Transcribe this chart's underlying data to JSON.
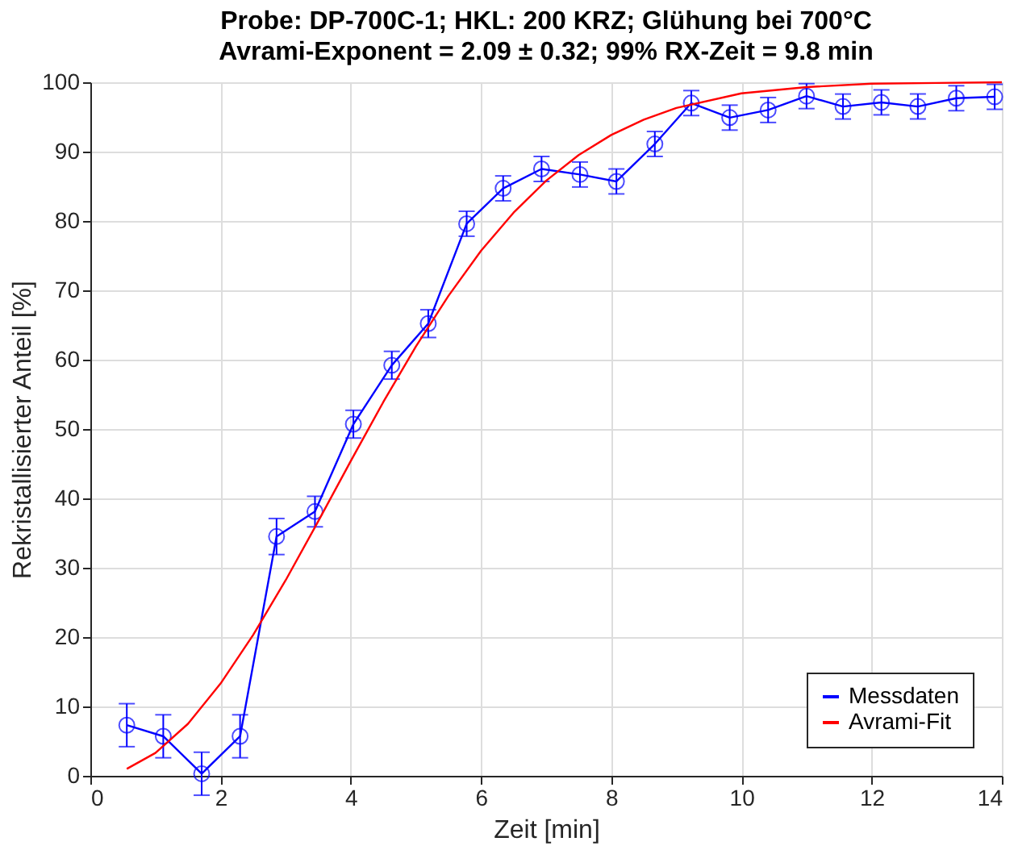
{
  "chart_data": {
    "type": "line",
    "title": "Probe: DP-700C-1;  HKL: 200 KRZ;  Glühung bei 700°C",
    "subtitle": "Avrami-Exponent = 2.09 ± 0.32;  99% RX-Zeit = 9.8 min",
    "xlabel": "Zeit [min]",
    "ylabel": "Rekristallisierter Anteil [%]",
    "xlim": [
      0,
      14
    ],
    "xticks": [
      0,
      2,
      4,
      6,
      8,
      10,
      12,
      14
    ],
    "ylim": [
      0,
      100
    ],
    "yticks": [
      0,
      10,
      20,
      30,
      40,
      50,
      60,
      70,
      80,
      90,
      100
    ],
    "grid": true,
    "legend": "bottom right",
    "series": [
      {
        "name": "Messdaten",
        "color": "#0000ff",
        "marker": "circle",
        "x": [
          0.56,
          1.12,
          1.71,
          2.3,
          2.86,
          3.45,
          4.04,
          4.63,
          5.19,
          5.78,
          6.34,
          6.93,
          7.52,
          8.08,
          8.67,
          9.23,
          9.82,
          10.41,
          11.0,
          11.56,
          12.15,
          12.71,
          13.3,
          13.89
        ],
        "values": [
          7.3,
          5.7,
          0.3,
          5.7,
          34.5,
          38.1,
          50.7,
          59.2,
          65.2,
          79.6,
          84.7,
          87.5,
          86.7,
          85.7,
          91.1,
          97.0,
          94.9,
          96.0,
          98.0,
          96.5,
          97.1,
          96.5,
          97.7,
          97.9
        ],
        "errors": [
          3.1,
          3.1,
          3.1,
          3.1,
          2.6,
          2.2,
          2.0,
          2.0,
          2.0,
          1.8,
          1.8,
          1.8,
          1.8,
          1.8,
          1.8,
          1.8,
          1.8,
          1.8,
          1.8,
          1.8,
          1.8,
          1.8,
          1.8,
          1.8
        ]
      },
      {
        "name": "Avrami-Fit",
        "color": "#ff0000",
        "marker": "none",
        "x": [
          0.56,
          1,
          1.5,
          2,
          2.5,
          3,
          3.5,
          4,
          4.5,
          5,
          5.5,
          6,
          6.5,
          7,
          7.5,
          8,
          8.5,
          9,
          10,
          11,
          12,
          13,
          14
        ],
        "values": [
          1.0,
          3.3,
          7.5,
          13.3,
          20.3,
          28.2,
          36.7,
          45.4,
          53.9,
          61.9,
          69.2,
          75.7,
          81.2,
          85.8,
          89.5,
          92.4,
          94.6,
          96.3,
          98.4,
          99.3,
          99.8,
          99.9,
          100.0
        ]
      }
    ]
  }
}
